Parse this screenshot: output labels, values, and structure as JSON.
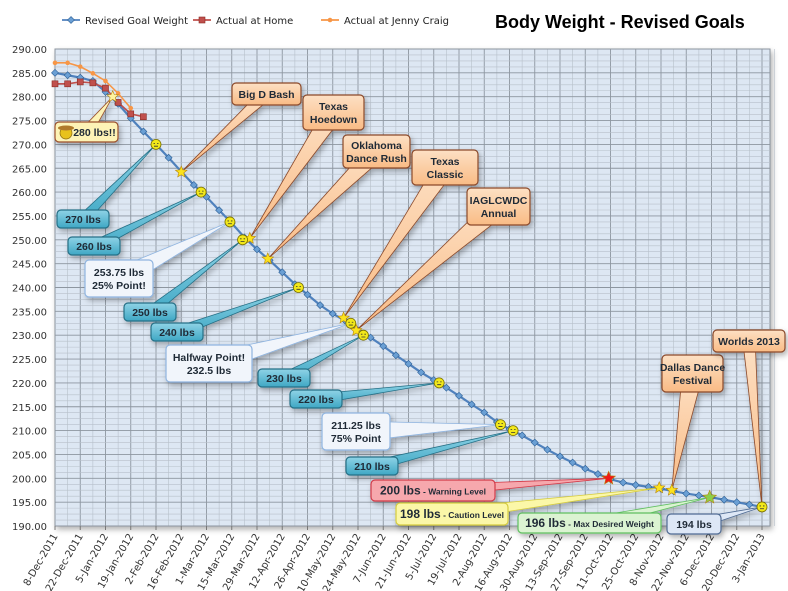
{
  "chart_data": {
    "type": "line",
    "title": "Body Weight - Revised Goals",
    "xlabel": "",
    "ylabel": "",
    "ylim": [
      190,
      290
    ],
    "yticks": [
      "290.00",
      "285.00",
      "280.00",
      "275.00",
      "270.00",
      "265.00",
      "260.00",
      "255.00",
      "250.00",
      "245.00",
      "240.00",
      "235.00",
      "230.00",
      "225.00",
      "220.00",
      "215.00",
      "210.00",
      "205.00",
      "200.00",
      "195.00",
      "190.00"
    ],
    "xticks": [
      "8-Dec-2011",
      "22-Dec-2011",
      "5-Jan-2012",
      "19-Jan-2012",
      "2-Feb-2012",
      "16-Feb-2012",
      "1-Mar-2012",
      "15-Mar-2012",
      "29-Mar-2012",
      "12-Apr-2012",
      "26-Apr-2012",
      "10-May-2012",
      "24-May-2012",
      "7-Jun-2012",
      "21-Jun-2012",
      "5-Jul-2012",
      "19-Jul-2012",
      "2-Aug-2012",
      "16-Aug-2012",
      "30-Aug-2012",
      "13-Sep-2012",
      "27-Sep-2012",
      "11-Oct-2012",
      "25-Oct-2012",
      "8-Nov-2012",
      "22-Nov-2012",
      "6-Dec-2012",
      "20-Dec-2012",
      "3-Jan-2013"
    ],
    "xlim": [
      "2011-12-08",
      "2013-01-03"
    ],
    "grid": true,
    "legend_position": "top-left",
    "series": [
      {
        "name": "Revised Goal Weight",
        "color": "#4f81bd",
        "marker": "diamond",
        "x": [
          "2011-12-08",
          "2011-12-15",
          "2011-12-22",
          "2011-12-29",
          "2012-01-05",
          "2012-01-12",
          "2012-01-19",
          "2012-01-26",
          "2012-02-02",
          "2012-02-09",
          "2012-02-16",
          "2012-02-23",
          "2012-03-01",
          "2012-03-08",
          "2012-03-15",
          "2012-03-22",
          "2012-03-29",
          "2012-04-05",
          "2012-04-12",
          "2012-04-19",
          "2012-04-26",
          "2012-05-03",
          "2012-05-10",
          "2012-05-17",
          "2012-05-24",
          "2012-05-31",
          "2012-06-07",
          "2012-06-14",
          "2012-06-21",
          "2012-06-28",
          "2012-07-05",
          "2012-07-12",
          "2012-07-19",
          "2012-07-26",
          "2012-08-02",
          "2012-08-09",
          "2012-08-16",
          "2012-08-23",
          "2012-08-30",
          "2012-09-06",
          "2012-09-13",
          "2012-09-20",
          "2012-09-27",
          "2012-10-04",
          "2012-10-11",
          "2012-10-18",
          "2012-10-25",
          "2012-11-01",
          "2012-11-08",
          "2012-11-15",
          "2012-11-22",
          "2012-11-29",
          "2012-12-06",
          "2012-12-13",
          "2012-12-20",
          "2012-12-27",
          "2013-01-03"
        ],
        "values": [
          285,
          284.5,
          284,
          283.3,
          281,
          278.5,
          275.5,
          272.7,
          270,
          267.2,
          264.3,
          261.5,
          259,
          256.2,
          253.5,
          250.5,
          248,
          245.7,
          243.2,
          240.7,
          238.5,
          236.3,
          234.5,
          233,
          231,
          229.5,
          227.7,
          225.8,
          224,
          222.2,
          220.6,
          219,
          217.3,
          215.5,
          213.8,
          211.8,
          210.3,
          209,
          207.5,
          206,
          204.6,
          203.3,
          202,
          200.9,
          199.8,
          199.1,
          198.6,
          198.2,
          197.8,
          197.3,
          196.8,
          196.4,
          196,
          195.5,
          195,
          194.5,
          194
        ]
      },
      {
        "name": "Actual at Home",
        "color": "#c0504d",
        "marker": "square",
        "x": [
          "2011-12-08",
          "2011-12-15",
          "2011-12-22",
          "2011-12-29",
          "2012-01-05",
          "2012-01-12",
          "2012-01-19",
          "2012-01-26"
        ],
        "values": [
          282.7,
          282.7,
          283.1,
          282.9,
          281.8,
          278.8,
          276.4,
          275.8
        ]
      },
      {
        "name": "Actual at Jenny Craig",
        "color": "#f79646",
        "marker": "circle",
        "x": [
          "2011-12-08",
          "2011-12-15",
          "2011-12-22",
          "2011-12-29",
          "2012-01-05",
          "2012-01-12",
          "2012-01-19"
        ],
        "values": [
          287.1,
          287.1,
          286.3,
          284.9,
          283.3,
          280.7,
          277.6
        ]
      }
    ],
    "annotations": [
      {
        "text": "280 lbs!!",
        "date": "2012-01-09",
        "weight": 280,
        "style": "pale",
        "marker": "star-pale",
        "icon": "cowboy-smiley-icon"
      },
      {
        "text": "Big D Bash",
        "date": "2012-02-16",
        "weight": 264.2,
        "style": "event",
        "marker": "star"
      },
      {
        "text": "Texas\nHoedown",
        "date": "2012-03-25",
        "weight": 250.3,
        "style": "event",
        "marker": "star"
      },
      {
        "text": "Oklahoma\nDance Rush",
        "date": "2012-04-04",
        "weight": 246,
        "style": "event",
        "marker": "star"
      },
      {
        "text": "Texas\nClassic",
        "date": "2012-05-16",
        "weight": 233.6,
        "style": "event",
        "marker": "star"
      },
      {
        "text": "IAGLCWDC\nAnnual",
        "date": "2012-05-23",
        "weight": 231,
        "style": "event",
        "marker": "star"
      },
      {
        "text": "Dallas Dance\nFestival",
        "date": "2012-11-14",
        "weight": 197.5,
        "style": "event",
        "marker": "star"
      },
      {
        "text": "Worlds 2013",
        "date": "2013-01-03",
        "weight": 194,
        "style": "event",
        "marker": "none"
      },
      {
        "text": "270 lbs",
        "date": "2012-02-02",
        "weight": 270,
        "style": "teal",
        "marker": "smiley"
      },
      {
        "text": "260 lbs",
        "date": "2012-02-27",
        "weight": 260,
        "style": "teal",
        "marker": "smiley"
      },
      {
        "text": "253.75 lbs\n25% Point!",
        "date": "2012-03-14",
        "weight": 253.75,
        "style": "white",
        "marker": "smiley"
      },
      {
        "text": "250 lbs",
        "date": "2012-03-21",
        "weight": 250,
        "style": "teal",
        "marker": "smiley"
      },
      {
        "text": "240 lbs",
        "date": "2012-04-21",
        "weight": 240,
        "style": "teal",
        "marker": "smiley"
      },
      {
        "text": "Halfway Point!\n232.5 lbs",
        "date": "2012-05-20",
        "weight": 232.5,
        "style": "white",
        "marker": "smiley"
      },
      {
        "text": "230 lbs",
        "date": "2012-05-27",
        "weight": 230,
        "style": "teal",
        "marker": "smiley"
      },
      {
        "text": "220 lbs",
        "date": "2012-07-08",
        "weight": 220,
        "style": "teal",
        "marker": "smiley"
      },
      {
        "text": "211.25 lbs\n75% Point",
        "date": "2012-08-11",
        "weight": 211.25,
        "style": "white",
        "marker": "smiley"
      },
      {
        "text": "210 lbs",
        "date": "2012-08-18",
        "weight": 210,
        "style": "teal",
        "marker": "smiley"
      },
      {
        "text": "200 lbs",
        "sub": " - Warning Level",
        "date": "2012-10-10",
        "weight": 200,
        "style": "red",
        "marker": "star-red"
      },
      {
        "text": "198 lbs",
        "sub": " - Caution Level",
        "date": "2012-11-07",
        "weight": 198,
        "style": "yellow",
        "marker": "star"
      },
      {
        "text": "196 lbs",
        "sub": " - Max Desired Weight",
        "date": "2012-12-05",
        "weight": 196,
        "style": "green",
        "marker": "star-green"
      },
      {
        "text": "194 lbs",
        "date": "2013-01-03",
        "weight": 194,
        "style": "blue",
        "marker": "smiley"
      }
    ]
  }
}
